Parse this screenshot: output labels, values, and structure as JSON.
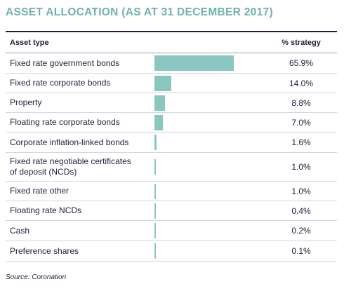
{
  "title": "ASSET ALLOCATION (AS AT 31 DECEMBER 2017)",
  "source": "Source: Coronation",
  "accent_color": "#6fb3ad",
  "bar_color": "#8ac7c0",
  "chart_data": {
    "type": "bar",
    "title": "ASSET ALLOCATION (AS AT 31 DECEMBER 2017)",
    "column_headers": [
      "Asset type",
      "% strategy"
    ],
    "categories": [
      "Fixed rate government bonds",
      "Fixed rate corporate bonds",
      "Property",
      "Floating rate corporate bonds",
      "Corporate inflation-linked bonds",
      "Fixed rate negotiable certificates of deposit (NCDs)",
      "Fixed rate other",
      "Floating rate NCDs",
      "Cash",
      "Preference shares"
    ],
    "values": [
      65.9,
      14.0,
      8.8,
      7.0,
      1.6,
      1.0,
      1.0,
      0.4,
      0.2,
      0.1
    ],
    "value_labels": [
      "65.9%",
      "14.0%",
      "8.8%",
      "7.0%",
      "1.6%",
      "1.0%",
      "1.0%",
      "0.4%",
      "0.2%",
      "0.1%"
    ],
    "orientation": "horizontal",
    "grid": false
  }
}
